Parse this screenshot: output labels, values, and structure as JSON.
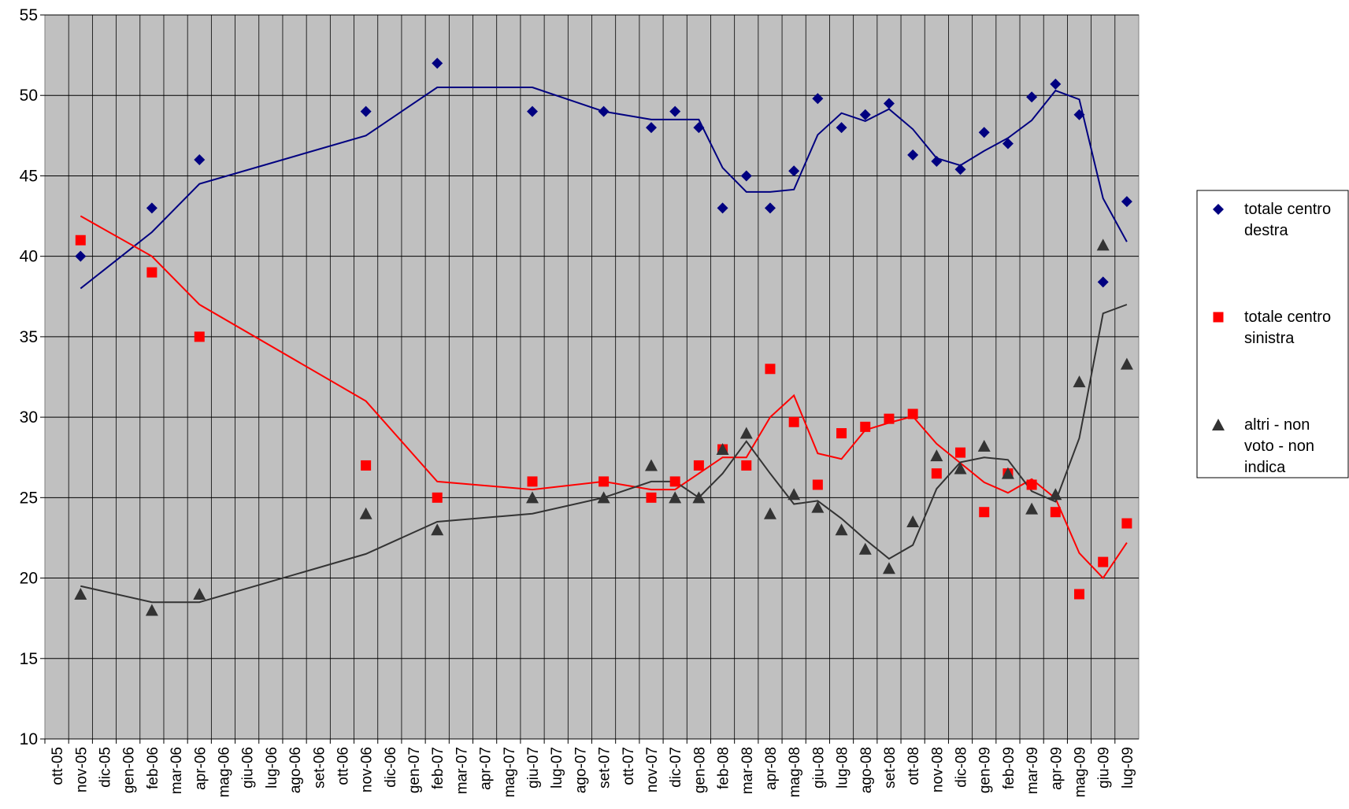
{
  "chart_data": {
    "type": "line",
    "categories": [
      "ott-05",
      "nov-05",
      "dic-05",
      "gen-06",
      "feb-06",
      "mar-06",
      "apr-06",
      "mag-06",
      "giu-06",
      "lug-06",
      "ago-06",
      "set-06",
      "ott-06",
      "nov-06",
      "dic-06",
      "gen-07",
      "feb-07",
      "mar-07",
      "apr-07",
      "mag-07",
      "giu-07",
      "lug-07",
      "ago-07",
      "set-07",
      "ott-07",
      "nov-07",
      "dic-07",
      "gen-08",
      "feb-08",
      "mar-08",
      "apr-08",
      "mag-08",
      "giu-08",
      "lug-08",
      "ago-08",
      "set-08",
      "ott-08",
      "nov-08",
      "dic-08",
      "gen-09",
      "feb-09",
      "mar-09",
      "apr-09",
      "mag-09",
      "giu-09",
      "lug-09"
    ],
    "x": [
      "nov-05",
      "feb-06",
      "apr-06",
      "nov-06",
      "feb-07",
      "giu-07",
      "set-07",
      "nov-07",
      "dic-07",
      "gen-08",
      "feb-08",
      "mar-08",
      "apr-08",
      "mag-08",
      "giu-08",
      "lug-08",
      "ago-08",
      "set-08",
      "ott-08",
      "nov-08",
      "dic-08",
      "gen-09",
      "feb-09",
      "mar-09",
      "apr-09",
      "mag-09",
      "giu-09",
      "lug-09"
    ],
    "series": [
      {
        "name": "totale centro destra",
        "color": "#000080",
        "marker": "diamond",
        "values": [
          40,
          43,
          46,
          49,
          52,
          49,
          49,
          48,
          49,
          48,
          43,
          45,
          43,
          45.3,
          49.8,
          48,
          48.8,
          49.5,
          46.3,
          45.9,
          45.4,
          47.7,
          47,
          49.9,
          50.7,
          48.8,
          38.4,
          43.4
        ],
        "trend": [
          38,
          41.5,
          44.5,
          47.5,
          50.5,
          50.5,
          49,
          48.5,
          48.5,
          48.5,
          45.5,
          44,
          44,
          44.15,
          47.55,
          48.9,
          48.4,
          49.15,
          47.9,
          46.1,
          45.65,
          46.55,
          47.35,
          48.45,
          50.3,
          49.75,
          43.6,
          40.9
        ]
      },
      {
        "name": "totale centro sinistra",
        "color": "#ff0000",
        "marker": "square",
        "values": [
          41,
          39,
          35,
          27,
          25,
          26,
          26,
          25,
          26,
          27,
          28,
          27,
          33,
          29.7,
          25.8,
          29,
          29.4,
          29.9,
          30.2,
          26.5,
          27.8,
          24.1,
          26.5,
          25.8,
          24.1,
          19,
          21,
          23.4
        ],
        "trend": [
          42.5,
          40,
          37,
          31,
          26,
          25.5,
          26,
          25.5,
          25.5,
          26.5,
          27.5,
          27.5,
          30,
          31.35,
          27.75,
          27.4,
          29.2,
          29.65,
          30.05,
          28.35,
          27.15,
          25.95,
          25.3,
          26.15,
          24.95,
          21.55,
          20,
          22.2
        ]
      },
      {
        "name": "altri - non voto - non indica",
        "color": "#333333",
        "marker": "triangle",
        "values": [
          19,
          18,
          19,
          24,
          23,
          25,
          25,
          27,
          25,
          25,
          28,
          29,
          24,
          25.2,
          24.4,
          23,
          21.8,
          20.6,
          23.5,
          27.6,
          26.8,
          28.2,
          26.5,
          24.3,
          25.2,
          32.2,
          40.7,
          33.3
        ],
        "trend": [
          19.5,
          18.5,
          18.5,
          21.5,
          23.5,
          24,
          25,
          26,
          26,
          25,
          26.5,
          28.5,
          26.5,
          24.6,
          24.8,
          23.7,
          22.4,
          21.2,
          22.05,
          25.55,
          27.2,
          27.5,
          27.35,
          25.4,
          24.75,
          28.7,
          36.45,
          37
        ]
      }
    ],
    "ylim": [
      10,
      55
    ],
    "yticks": [
      10,
      15,
      20,
      25,
      30,
      35,
      40,
      45,
      50,
      55
    ],
    "grid": true,
    "legend": "right"
  }
}
